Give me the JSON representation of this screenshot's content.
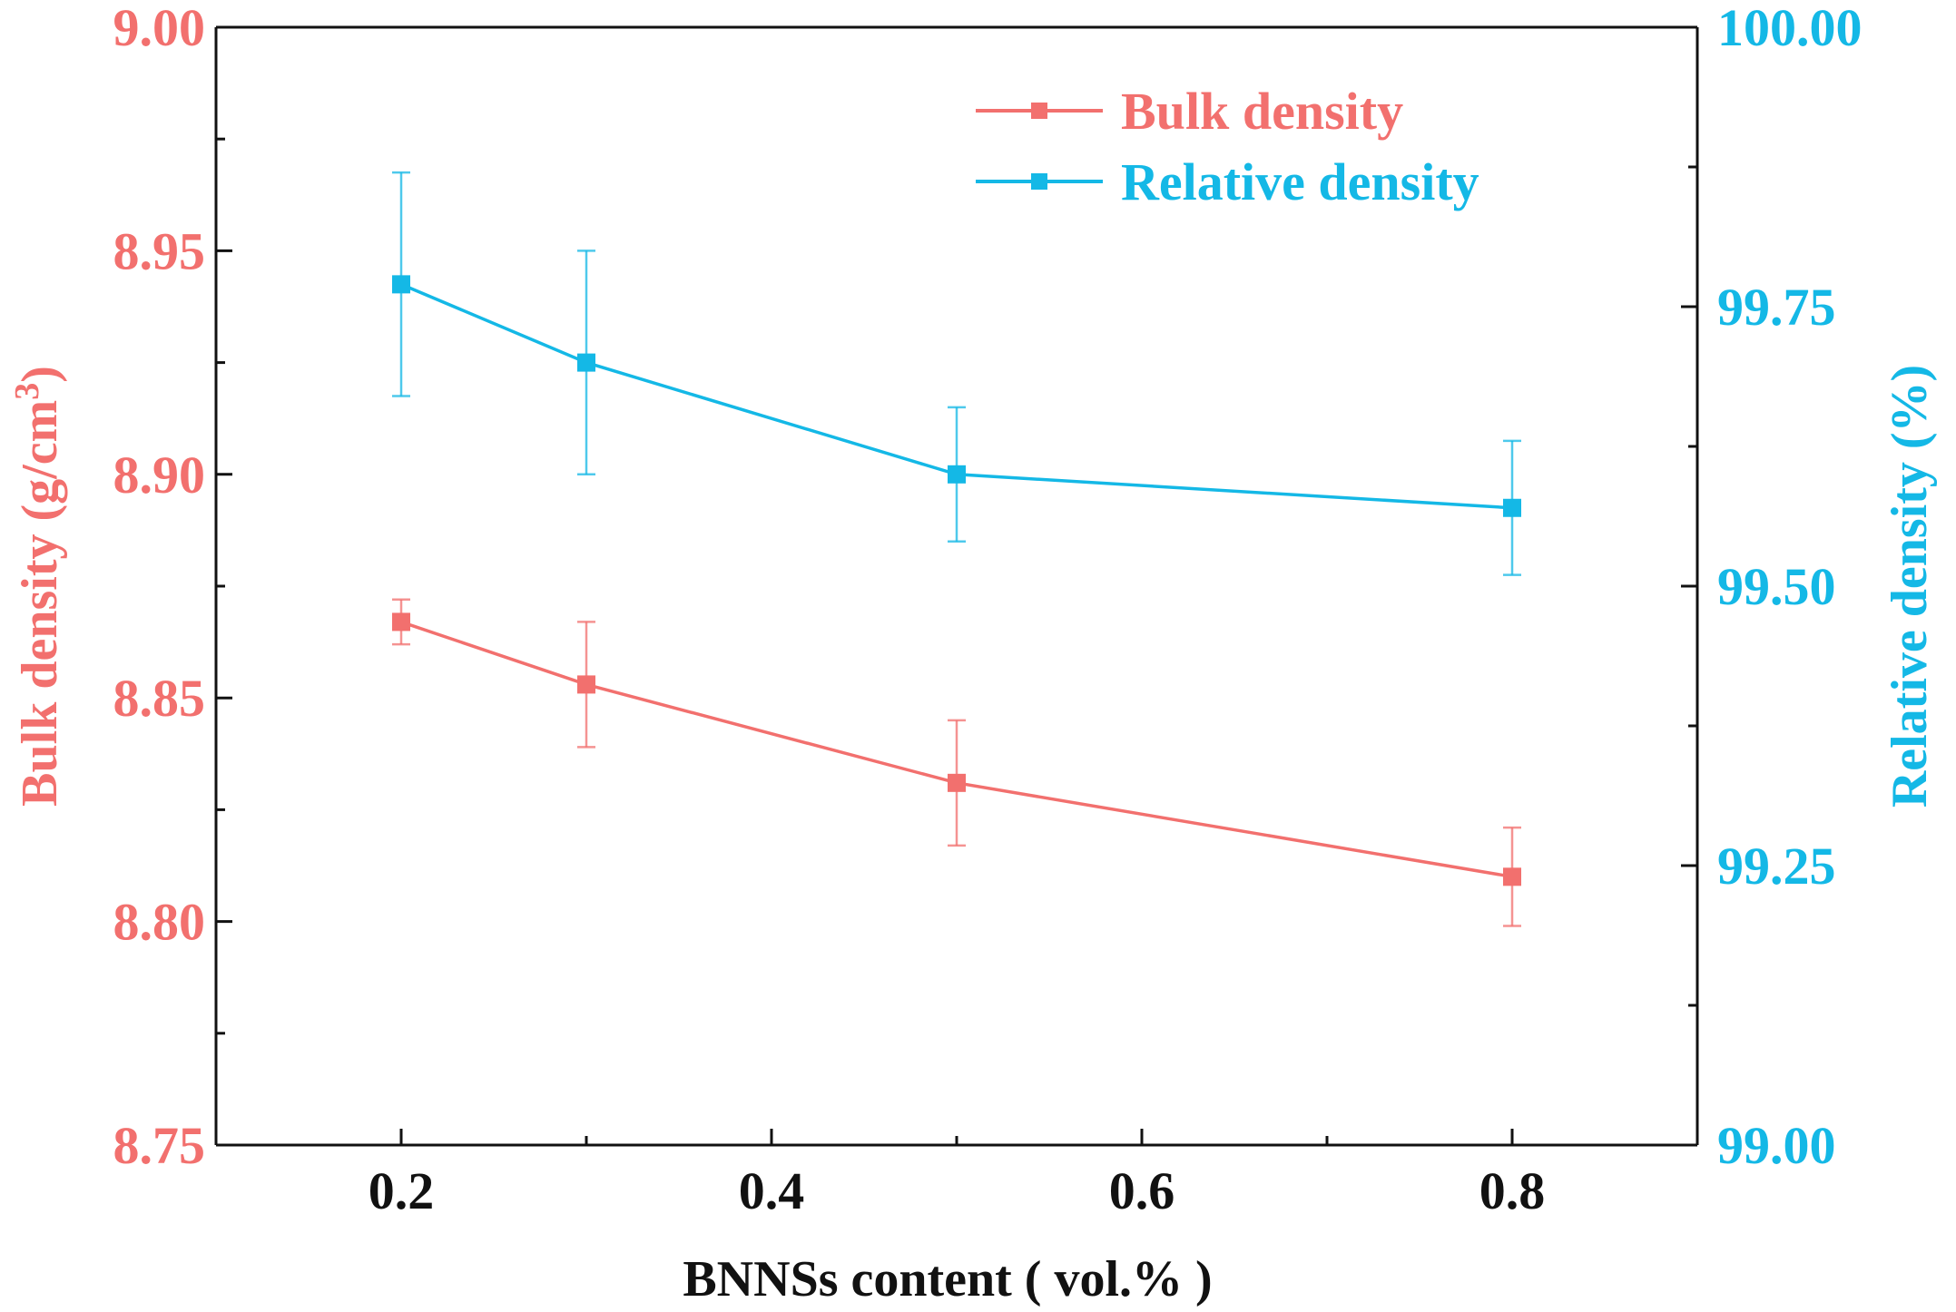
{
  "colors": {
    "bulk": "#F2706E",
    "relative": "#14B8E6",
    "axis": "#111111"
  },
  "chart_data": {
    "type": "line",
    "xlabel": "BNNSs content ( vol.% )",
    "ylabel_left": "Bulk density (g/cm",
    "ylabel_left_sup": "3",
    "ylabel_left_close": ")",
    "ylabel_right": "Relative density (%)",
    "xlim": [
      0.1,
      0.9
    ],
    "ylim_left": [
      8.75,
      9.0
    ],
    "ylim_right": [
      99.0,
      100.0
    ],
    "x_ticks": [
      0.2,
      0.4,
      0.6,
      0.8
    ],
    "x_tick_labels": [
      "0.2",
      "0.4",
      "0.6",
      "0.8"
    ],
    "y_left_ticks": [
      8.75,
      8.8,
      8.85,
      8.9,
      8.95,
      9.0
    ],
    "y_left_tick_labels": [
      "8.75",
      "8.80",
      "8.85",
      "8.90",
      "8.95",
      "9.00"
    ],
    "y_right_ticks": [
      99.0,
      99.25,
      99.5,
      99.75,
      100.0
    ],
    "y_right_tick_labels": [
      "99.00",
      "99.25",
      "99.50",
      "99.75",
      "100.00"
    ],
    "grid": false,
    "legend_position": "top-right",
    "series": [
      {
        "name": "Bulk density",
        "axis": "left",
        "color": "#F2706E",
        "x": [
          0.2,
          0.3,
          0.5,
          0.8
        ],
        "y": [
          8.867,
          8.853,
          8.831,
          8.81
        ],
        "yerr": [
          0.005,
          0.014,
          0.014,
          0.011
        ]
      },
      {
        "name": "Relative density",
        "axis": "right",
        "color": "#14B8E6",
        "x": [
          0.2,
          0.3,
          0.5,
          0.8
        ],
        "y": [
          99.77,
          99.7,
          99.6,
          99.57
        ],
        "yerr": [
          0.1,
          0.1,
          0.06,
          0.06
        ]
      }
    ]
  }
}
